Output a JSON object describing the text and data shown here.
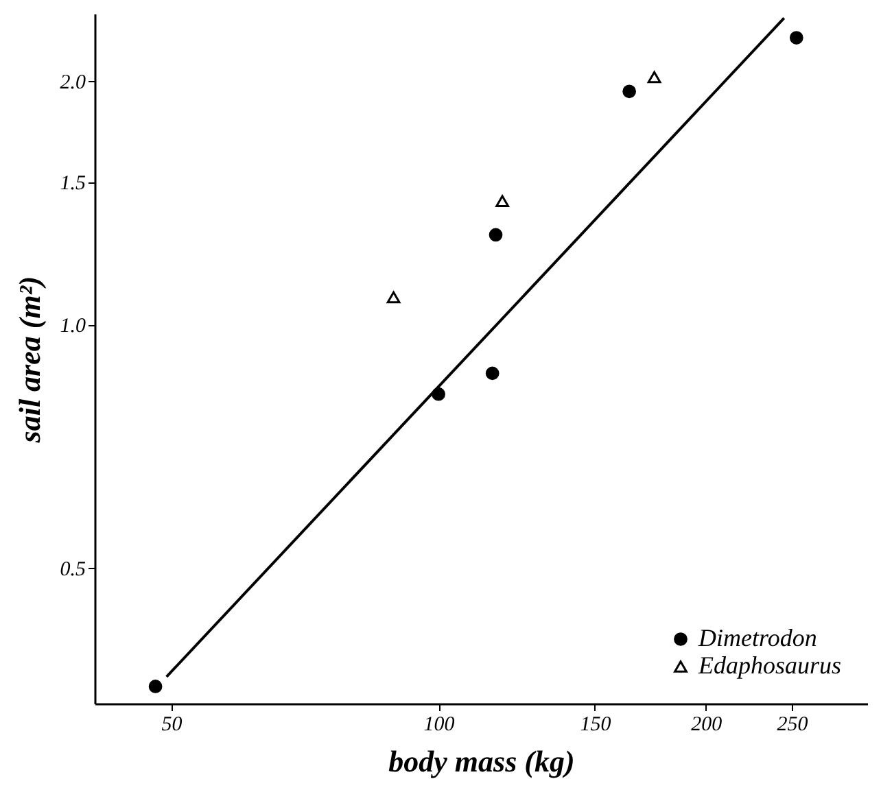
{
  "chart_data": {
    "type": "scatter",
    "xlabel": "body mass (kg)",
    "ylabel": "sail area (m²)",
    "log": "xy",
    "grid": false,
    "legend": "bottom right",
    "xlim": [
      41,
      304
    ],
    "ylim": [
      0.34,
      2.42
    ],
    "xticks": [
      50,
      100,
      150,
      200,
      250
    ],
    "yticks": [
      0.5,
      {
        "value": 1,
        "label": "1.0"
      },
      1.5,
      {
        "value": 2,
        "label": "2.0"
      }
    ],
    "series": [
      {
        "name": "Dimetrodon",
        "color": "#000000",
        "marker": "circle",
        "x": [
          48,
          100,
          115,
          116,
          164,
          253
        ],
        "values": [
          0.357,
          0.82,
          0.87,
          1.29,
          1.94,
          2.26
        ]
      },
      {
        "name": "Edaphosaurus",
        "color": "#000000",
        "marker": "triangle",
        "x": [
          89,
          118,
          175
        ],
        "values": [
          1.08,
          1.42,
          2.02
        ]
      },
      {
        "type": "line",
        "color": "#000000",
        "line_style": "solid",
        "marker": "none",
        "x": [
          49.4,
          245
        ],
        "values": [
          0.367,
          2.39
        ]
      }
    ]
  }
}
